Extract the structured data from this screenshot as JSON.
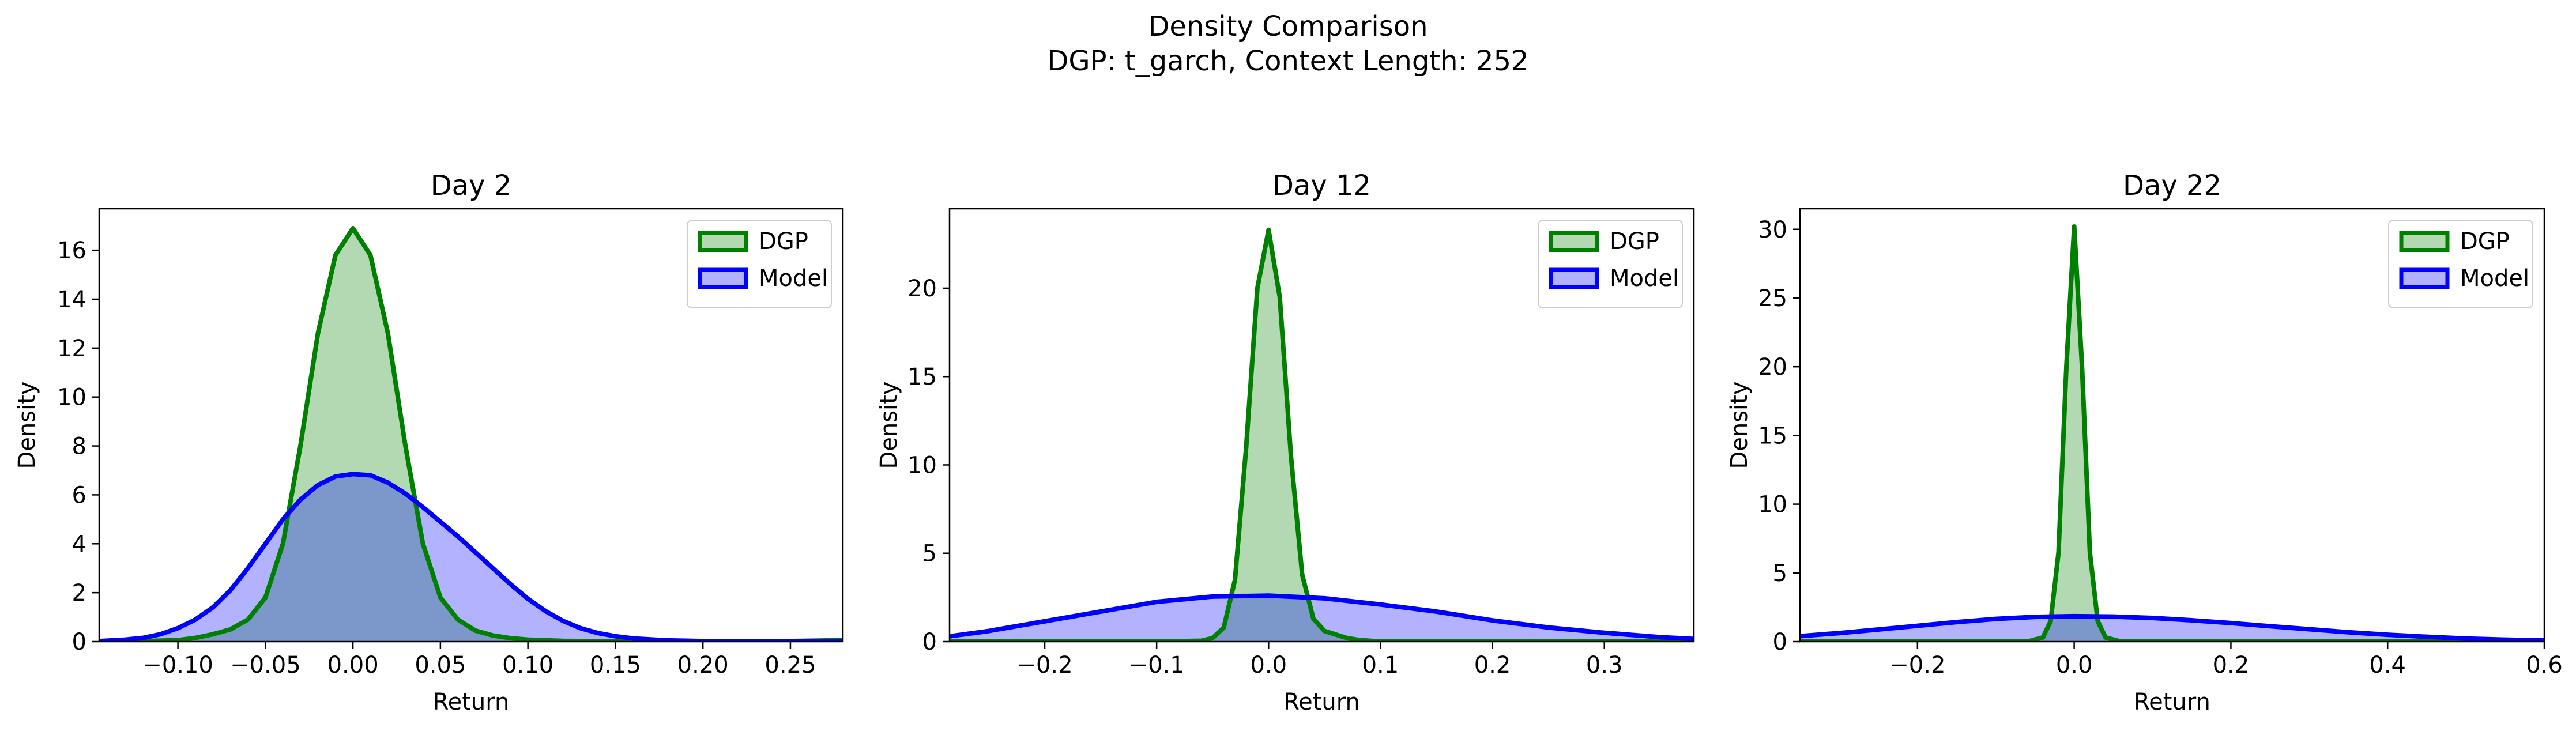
{
  "figure": {
    "title_line1": "Density Comparison",
    "title_line2": "DGP: t_garch, Context Length: 252"
  },
  "colors": {
    "dgp_line": "#008000",
    "dgp_fill": "#008000",
    "model_line": "#0000ff",
    "model_fill": "#0000ff"
  },
  "chart_data": [
    {
      "type": "area",
      "title": "Day 2",
      "xlabel": "Return",
      "ylabel": "Density",
      "xlim": [
        -0.145,
        0.28
      ],
      "ylim": [
        0,
        17.7
      ],
      "xticks": [
        -0.1,
        -0.05,
        0.0,
        0.05,
        0.1,
        0.15,
        0.2,
        0.25
      ],
      "xtick_labels": [
        "−0.10",
        "−0.05",
        "0.00",
        "0.05",
        "0.10",
        "0.15",
        "0.20",
        "0.25"
      ],
      "yticks": [
        0,
        2,
        4,
        6,
        8,
        10,
        12,
        14,
        16
      ],
      "ytick_labels": [
        "0",
        "2",
        "4",
        "6",
        "8",
        "10",
        "12",
        "14",
        "16"
      ],
      "legend": "top-right",
      "grid": false,
      "series": [
        {
          "name": "DGP",
          "x": [
            -0.145,
            -0.12,
            -0.1,
            -0.09,
            -0.08,
            -0.07,
            -0.06,
            -0.05,
            -0.04,
            -0.03,
            -0.02,
            -0.01,
            0.0,
            0.01,
            0.02,
            0.03,
            0.04,
            0.05,
            0.06,
            0.07,
            0.08,
            0.09,
            0.1,
            0.12,
            0.15,
            0.2,
            0.25,
            0.28
          ],
          "y": [
            0.0,
            0.02,
            0.06,
            0.15,
            0.3,
            0.5,
            0.9,
            1.8,
            4.0,
            8.0,
            12.6,
            15.8,
            16.9,
            15.8,
            12.6,
            8.0,
            4.0,
            1.8,
            0.9,
            0.45,
            0.25,
            0.14,
            0.08,
            0.03,
            0.01,
            0.005,
            0.02,
            0.06
          ]
        },
        {
          "name": "Model",
          "x": [
            -0.145,
            -0.13,
            -0.12,
            -0.11,
            -0.1,
            -0.09,
            -0.08,
            -0.07,
            -0.06,
            -0.05,
            -0.04,
            -0.03,
            -0.02,
            -0.01,
            0.0,
            0.01,
            0.02,
            0.03,
            0.04,
            0.05,
            0.06,
            0.07,
            0.08,
            0.09,
            0.1,
            0.11,
            0.12,
            0.13,
            0.14,
            0.15,
            0.16,
            0.18,
            0.2,
            0.22,
            0.25,
            0.28
          ],
          "y": [
            0.02,
            0.08,
            0.15,
            0.3,
            0.55,
            0.9,
            1.4,
            2.1,
            3.0,
            4.0,
            5.0,
            5.8,
            6.4,
            6.75,
            6.85,
            6.8,
            6.5,
            6.05,
            5.5,
            4.9,
            4.3,
            3.65,
            3.0,
            2.35,
            1.75,
            1.25,
            0.85,
            0.55,
            0.35,
            0.22,
            0.13,
            0.05,
            0.02,
            0.01,
            0.005,
            0.0
          ]
        }
      ]
    },
    {
      "type": "area",
      "title": "Day 12",
      "xlabel": "Return",
      "ylabel": "Density",
      "xlim": [
        -0.285,
        0.38
      ],
      "ylim": [
        0,
        24.5
      ],
      "xticks": [
        -0.2,
        -0.1,
        0.0,
        0.1,
        0.2,
        0.3
      ],
      "xtick_labels": [
        "−0.2",
        "−0.1",
        "0.0",
        "0.1",
        "0.2",
        "0.3"
      ],
      "yticks": [
        0,
        5,
        10,
        15,
        20
      ],
      "ytick_labels": [
        "0",
        "5",
        "10",
        "15",
        "20"
      ],
      "legend": "top-right",
      "grid": false,
      "series": [
        {
          "name": "DGP",
          "x": [
            -0.285,
            -0.1,
            -0.06,
            -0.05,
            -0.04,
            -0.03,
            -0.02,
            -0.01,
            0.0,
            0.01,
            0.02,
            0.03,
            0.04,
            0.05,
            0.06,
            0.07,
            0.08,
            0.1,
            0.38
          ],
          "y": [
            0.0,
            0.0,
            0.05,
            0.2,
            0.8,
            3.5,
            11.0,
            20.0,
            23.3,
            19.5,
            10.5,
            3.8,
            1.3,
            0.6,
            0.4,
            0.2,
            0.1,
            0.0,
            0.0
          ]
        },
        {
          "name": "Model",
          "x": [
            -0.285,
            -0.25,
            -0.2,
            -0.15,
            -0.1,
            -0.05,
            0.0,
            0.05,
            0.1,
            0.15,
            0.2,
            0.25,
            0.3,
            0.35,
            0.38
          ],
          "y": [
            0.3,
            0.6,
            1.15,
            1.7,
            2.25,
            2.55,
            2.6,
            2.45,
            2.1,
            1.7,
            1.2,
            0.8,
            0.5,
            0.25,
            0.15
          ]
        }
      ]
    },
    {
      "type": "area",
      "title": "Day 22",
      "xlabel": "Return",
      "ylabel": "Density",
      "xlim": [
        -0.35,
        0.6
      ],
      "ylim": [
        0,
        31.5
      ],
      "xticks": [
        -0.2,
        0.0,
        0.2,
        0.4,
        0.6
      ],
      "xtick_labels": [
        "−0.2",
        "0.0",
        "0.2",
        "0.4",
        "0.6"
      ],
      "yticks": [
        0,
        5,
        10,
        15,
        20,
        25,
        30
      ],
      "ytick_labels": [
        "0",
        "5",
        "10",
        "15",
        "20",
        "25",
        "30"
      ],
      "legend": "top-right",
      "grid": false,
      "series": [
        {
          "name": "DGP",
          "x": [
            -0.35,
            -0.06,
            -0.04,
            -0.03,
            -0.02,
            -0.01,
            0.0,
            0.01,
            0.02,
            0.03,
            0.04,
            0.06,
            0.6
          ],
          "y": [
            0.0,
            0.0,
            0.3,
            1.5,
            6.5,
            20.0,
            30.2,
            20.0,
            6.5,
            1.5,
            0.3,
            0.0,
            0.0
          ]
        },
        {
          "name": "Model",
          "x": [
            -0.35,
            -0.3,
            -0.25,
            -0.2,
            -0.15,
            -0.1,
            -0.05,
            0.0,
            0.05,
            0.1,
            0.15,
            0.2,
            0.25,
            0.3,
            0.35,
            0.4,
            0.45,
            0.5,
            0.55,
            0.6
          ],
          "y": [
            0.4,
            0.62,
            0.88,
            1.15,
            1.42,
            1.65,
            1.8,
            1.85,
            1.82,
            1.72,
            1.55,
            1.35,
            1.12,
            0.9,
            0.68,
            0.5,
            0.35,
            0.22,
            0.14,
            0.08
          ]
        }
      ]
    }
  ]
}
